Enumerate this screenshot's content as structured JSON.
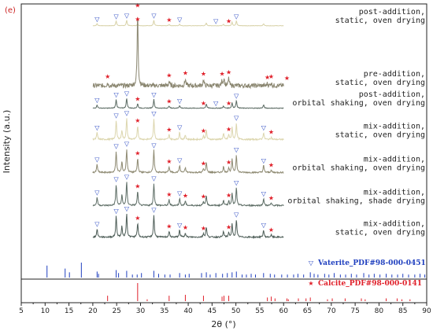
{
  "chart_data": {
    "type": "line",
    "panel_label": "(e)",
    "xlabel": "2θ (°)",
    "ylabel": "Intensity (a.u.)",
    "xlim": [
      5,
      90
    ],
    "x_ticks": [
      "5",
      "10",
      "15",
      "20",
      "25",
      "30",
      "35",
      "40",
      "45",
      "50",
      "55",
      "60",
      "65",
      "70",
      "75",
      "80",
      "85",
      "90"
    ],
    "grid": false,
    "series": [
      {
        "name": "post-addition, static, oven drying",
        "label_lines": [
          "post-addition,",
          "static, oven drying"
        ],
        "color": "#d8d2a8",
        "baseline": 0.92,
        "scale": 0.025,
        "peaks": [
          [
            20.9,
            0.3
          ],
          [
            24.9,
            0.7
          ],
          [
            27.1,
            0.8
          ],
          [
            29.4,
            0.3
          ],
          [
            32.8,
            0.8
          ],
          [
            36.0,
            0.2
          ],
          [
            38.2,
            0.25
          ],
          [
            43.8,
            0.4
          ],
          [
            47.4,
            0.2
          ],
          [
            49.2,
            0.5
          ],
          [
            50.1,
            0.7
          ],
          [
            55.8,
            0.3
          ]
        ]
      },
      {
        "name": "pre-addition, static, oven drying",
        "label_lines": [
          "pre-addition,",
          "static, oven drying"
        ],
        "color": "#8a8670",
        "baseline": 0.695,
        "scale": 0.27,
        "peaks": [
          [
            23.1,
            0.04
          ],
          [
            29.4,
            1.0
          ],
          [
            36.0,
            0.06
          ],
          [
            39.4,
            0.09
          ],
          [
            43.2,
            0.08
          ],
          [
            47.1,
            0.07
          ],
          [
            47.5,
            0.1
          ],
          [
            48.5,
            0.1
          ],
          [
            56.6,
            0.03
          ],
          [
            57.4,
            0.04
          ],
          [
            60.7,
            0.02
          ],
          [
            64.7,
            0.01
          ],
          [
            65.6,
            0.01
          ]
        ]
      },
      {
        "name": "post-addition, orbital shaking, oven drying",
        "label_lines": [
          "post-addition,",
          "orbital shaking, oven drying"
        ],
        "color": "#5a6a62",
        "baseline": 0.62,
        "scale": 0.04,
        "peaks": [
          [
            20.9,
            0.3
          ],
          [
            24.9,
            0.8
          ],
          [
            27.1,
            0.9
          ],
          [
            29.4,
            0.4
          ],
          [
            32.8,
            0.8
          ],
          [
            36.0,
            0.2
          ],
          [
            38.2,
            0.25
          ],
          [
            43.8,
            0.4
          ],
          [
            47.4,
            0.2
          ],
          [
            49.2,
            0.5
          ],
          [
            50.1,
            0.7
          ],
          [
            55.8,
            0.3
          ]
        ]
      },
      {
        "name": "mix-addition, static, oven drying",
        "label_lines": [
          "mix-addition,",
          "static, oven drying"
        ],
        "color": "#dcd6ae",
        "baseline": 0.505,
        "scale": 0.085,
        "peaks": [
          [
            20.9,
            0.3
          ],
          [
            24.9,
            0.8
          ],
          [
            26.1,
            0.4
          ],
          [
            27.1,
            0.9
          ],
          [
            29.4,
            0.6
          ],
          [
            32.8,
            0.9
          ],
          [
            36.0,
            0.2
          ],
          [
            38.2,
            0.3
          ],
          [
            39.4,
            0.2
          ],
          [
            43.2,
            0.15
          ],
          [
            43.8,
            0.4
          ],
          [
            47.4,
            0.25
          ],
          [
            48.5,
            0.2
          ],
          [
            49.2,
            0.5
          ],
          [
            50.1,
            0.7
          ],
          [
            55.8,
            0.3
          ],
          [
            57.4,
            0.1
          ]
        ]
      },
      {
        "name": "mix-addition, orbital shaking, oven drying",
        "label_lines": [
          "mix-addition,",
          "orbital shaking, oven drying"
        ],
        "color": "#8e8a72",
        "baseline": 0.385,
        "scale": 0.085,
        "peaks": [
          [
            20.9,
            0.35
          ],
          [
            24.9,
            0.9
          ],
          [
            26.1,
            0.45
          ],
          [
            27.1,
            1.0
          ],
          [
            29.4,
            0.6
          ],
          [
            32.8,
            0.95
          ],
          [
            36.0,
            0.25
          ],
          [
            38.2,
            0.3
          ],
          [
            39.4,
            0.2
          ],
          [
            43.2,
            0.15
          ],
          [
            43.8,
            0.45
          ],
          [
            47.4,
            0.25
          ],
          [
            48.5,
            0.2
          ],
          [
            49.2,
            0.55
          ],
          [
            50.1,
            0.75
          ],
          [
            55.8,
            0.3
          ],
          [
            57.4,
            0.1
          ]
        ]
      },
      {
        "name": "mix-addition, orbital shaking, shade drying",
        "label_lines": [
          "mix-addition,",
          "orbital shaking, shade drying"
        ],
        "color": "#5e6e66",
        "baseline": 0.265,
        "scale": 0.085,
        "peaks": [
          [
            20.9,
            0.35
          ],
          [
            24.9,
            0.9
          ],
          [
            26.1,
            0.45
          ],
          [
            27.1,
            1.0
          ],
          [
            29.4,
            0.6
          ],
          [
            32.8,
            0.95
          ],
          [
            36.0,
            0.25
          ],
          [
            38.2,
            0.3
          ],
          [
            39.4,
            0.2
          ],
          [
            43.2,
            0.15
          ],
          [
            43.8,
            0.45
          ],
          [
            47.4,
            0.25
          ],
          [
            48.5,
            0.2
          ],
          [
            49.2,
            0.55
          ],
          [
            50.1,
            0.75
          ],
          [
            55.8,
            0.3
          ],
          [
            57.4,
            0.1
          ]
        ]
      },
      {
        "name": "mix-addition, static, oven drying",
        "label_lines": [
          "mix-addition,",
          "static, oven drying"
        ],
        "color": "#4e5e58",
        "baseline": 0.15,
        "scale": 0.085,
        "peaks": [
          [
            20.9,
            0.35
          ],
          [
            24.9,
            0.9
          ],
          [
            26.1,
            0.45
          ],
          [
            27.1,
            1.0
          ],
          [
            29.4,
            0.6
          ],
          [
            32.8,
            0.95
          ],
          [
            36.0,
            0.25
          ],
          [
            38.2,
            0.3
          ],
          [
            39.4,
            0.2
          ],
          [
            43.2,
            0.15
          ],
          [
            43.8,
            0.45
          ],
          [
            47.4,
            0.25
          ],
          [
            48.5,
            0.2
          ],
          [
            49.2,
            0.55
          ],
          [
            50.1,
            0.75
          ],
          [
            55.8,
            0.3
          ],
          [
            57.4,
            0.1
          ]
        ]
      }
    ],
    "markers": {
      "vaterite": [
        [
          0,
          [
            20.9,
            24.9,
            27.1,
            32.8,
            38.2,
            45.8,
            50.1
          ]
        ],
        [
          2,
          [
            20.9,
            24.9,
            27.1,
            32.8,
            38.2,
            45.8,
            50.1
          ]
        ],
        [
          3,
          [
            20.9,
            24.9,
            27.1,
            32.8,
            38.2,
            50.1,
            55.8
          ]
        ],
        [
          4,
          [
            20.9,
            24.9,
            27.1,
            32.8,
            38.2,
            50.1,
            55.8
          ]
        ],
        [
          5,
          [
            20.9,
            24.9,
            27.1,
            32.8,
            38.2,
            50.1,
            55.8
          ]
        ],
        [
          6,
          [
            20.9,
            24.9,
            27.1,
            32.8,
            38.2,
            50.1,
            55.8
          ]
        ]
      ],
      "calcite": [
        [
          0,
          [
            29.4,
            36.0,
            48.5
          ]
        ],
        [
          1,
          [
            23.1,
            29.4,
            36.0,
            39.4,
            43.2,
            47.1,
            48.5,
            56.6,
            57.4,
            60.7
          ]
        ],
        [
          2,
          [
            29.4,
            36.0,
            43.2,
            48.5
          ]
        ],
        [
          3,
          [
            29.4,
            36.0,
            43.2,
            48.5,
            57.4
          ]
        ],
        [
          4,
          [
            29.4,
            36.0,
            43.2,
            48.5,
            57.4
          ]
        ],
        [
          5,
          [
            29.4,
            36.0,
            39.4,
            43.2,
            48.5,
            57.4
          ]
        ],
        [
          6,
          [
            29.4,
            36.0,
            39.4,
            43.2,
            48.5,
            57.4
          ]
        ]
      ]
    },
    "references": [
      {
        "name": "Vaterite_PDF#98-000-0451",
        "color": "#1f3fbf",
        "symbol": "▽",
        "lines": [
          [
            10.4,
            0.8
          ],
          [
            14.2,
            0.6
          ],
          [
            15.1,
            0.35
          ],
          [
            17.6,
            1.0
          ],
          [
            20.9,
            0.4
          ],
          [
            21.2,
            0.25
          ],
          [
            24.9,
            0.5
          ],
          [
            25.4,
            0.3
          ],
          [
            27.1,
            0.45
          ],
          [
            28.3,
            0.2
          ],
          [
            29.3,
            0.2
          ],
          [
            30.2,
            0.3
          ],
          [
            32.8,
            0.45
          ],
          [
            33.8,
            0.25
          ],
          [
            35.1,
            0.2
          ],
          [
            36.2,
            0.2
          ],
          [
            38.2,
            0.3
          ],
          [
            39.4,
            0.2
          ],
          [
            40.2,
            0.25
          ],
          [
            42.8,
            0.3
          ],
          [
            43.8,
            0.35
          ],
          [
            44.6,
            0.2
          ],
          [
            45.8,
            0.3
          ],
          [
            47.2,
            0.25
          ],
          [
            48.2,
            0.3
          ],
          [
            49.2,
            0.35
          ],
          [
            50.1,
            0.4
          ],
          [
            51.3,
            0.2
          ],
          [
            52.2,
            0.2
          ],
          [
            53.2,
            0.25
          ],
          [
            54.1,
            0.2
          ],
          [
            55.8,
            0.3
          ],
          [
            57.2,
            0.25
          ],
          [
            58.1,
            0.2
          ],
          [
            59.6,
            0.2
          ],
          [
            60.8,
            0.2
          ],
          [
            62.1,
            0.2
          ],
          [
            63.0,
            0.25
          ],
          [
            64.2,
            0.2
          ],
          [
            65.6,
            0.35
          ],
          [
            66.4,
            0.25
          ],
          [
            67.2,
            0.2
          ],
          [
            68.6,
            0.25
          ],
          [
            69.5,
            0.2
          ],
          [
            70.6,
            0.3
          ],
          [
            71.9,
            0.2
          ],
          [
            73.0,
            0.2
          ],
          [
            74.2,
            0.25
          ],
          [
            75.3,
            0.2
          ],
          [
            76.8,
            0.3
          ],
          [
            77.9,
            0.2
          ],
          [
            79.0,
            0.25
          ],
          [
            80.2,
            0.2
          ],
          [
            81.5,
            0.25
          ],
          [
            82.7,
            0.2
          ],
          [
            83.9,
            0.2
          ],
          [
            85.0,
            0.25
          ],
          [
            86.2,
            0.2
          ],
          [
            87.5,
            0.2
          ],
          [
            88.6,
            0.25
          ],
          [
            89.6,
            0.2
          ]
        ]
      },
      {
        "name": "Calcite_PDF#98-000-0141",
        "color": "#e0202a",
        "symbol": "★",
        "lines": [
          [
            23.1,
            0.3
          ],
          [
            29.4,
            1.0
          ],
          [
            31.4,
            0.1
          ],
          [
            36.0,
            0.3
          ],
          [
            39.4,
            0.35
          ],
          [
            43.2,
            0.3
          ],
          [
            47.1,
            0.25
          ],
          [
            47.5,
            0.3
          ],
          [
            48.5,
            0.3
          ],
          [
            56.6,
            0.2
          ],
          [
            57.4,
            0.25
          ],
          [
            58.2,
            0.15
          ],
          [
            60.7,
            0.15
          ],
          [
            61.0,
            0.1
          ],
          [
            63.1,
            0.15
          ],
          [
            64.7,
            0.15
          ],
          [
            65.6,
            0.2
          ],
          [
            69.2,
            0.1
          ],
          [
            70.2,
            0.15
          ],
          [
            72.9,
            0.15
          ],
          [
            76.3,
            0.15
          ],
          [
            77.1,
            0.1
          ],
          [
            81.5,
            0.15
          ],
          [
            83.8,
            0.15
          ],
          [
            84.8,
            0.1
          ],
          [
            86.5,
            0.1
          ]
        ]
      }
    ]
  }
}
